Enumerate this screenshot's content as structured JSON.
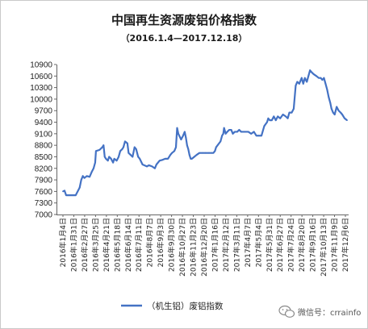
{
  "chart_data": {
    "type": "line",
    "title": "中国再生资源废铝价格指数",
    "subtitle": "（2016.1.4—2017.12.18）",
    "y_ticks": [
      7000,
      7300,
      7600,
      7900,
      8200,
      8500,
      8800,
      9100,
      9400,
      9700,
      10000,
      10300,
      10600,
      10900
    ],
    "ylim": [
      7000,
      10900
    ],
    "grid": false,
    "legend_position": "bottom",
    "color": "#4472c4",
    "x_ticks": [
      "2016年1月4日",
      "2016年1月31日",
      "2016年2月27日",
      "2016年3月25日",
      "2016年4月21日",
      "2016年5月18日",
      "2016年6月14日",
      "2016年7月11日",
      "2016年8月7日",
      "2016年9月3日",
      "2016年9月30日",
      "2016年10月27日",
      "2016年11月23日",
      "2016年12月20日",
      "2017年1月16日",
      "2017年2月12日",
      "2017年3月11日",
      "2017年4月7日",
      "2017年5月4日",
      "2017年5月31日",
      "2017年6月27日",
      "2017年7月24日",
      "2017年8月20日",
      "2017年9月16日",
      "2017年10月13日",
      "2017年11月9日",
      "2017年12月6日"
    ],
    "series": [
      {
        "name": "（机生铝）废铝指数",
        "points": [
          [
            "2016-01-04",
            7600
          ],
          [
            "2016-01-08",
            7620
          ],
          [
            "2016-01-12",
            7500
          ],
          [
            "2016-01-22",
            7500
          ],
          [
            "2016-02-05",
            7500
          ],
          [
            "2016-02-15",
            7700
          ],
          [
            "2016-02-19",
            7900
          ],
          [
            "2016-02-23",
            8000
          ],
          [
            "2016-02-27",
            7950
          ],
          [
            "2016-03-04",
            8000
          ],
          [
            "2016-03-11",
            7980
          ],
          [
            "2016-03-16",
            8100
          ],
          [
            "2016-03-21",
            8200
          ],
          [
            "2016-03-25",
            8350
          ],
          [
            "2016-03-27",
            8650
          ],
          [
            "2016-04-05",
            8680
          ],
          [
            "2016-04-12",
            8750
          ],
          [
            "2016-04-15",
            8800
          ],
          [
            "2016-04-18",
            8500
          ],
          [
            "2016-04-21",
            8450
          ],
          [
            "2016-04-26",
            8400
          ],
          [
            "2016-04-29",
            8500
          ],
          [
            "2016-05-04",
            8450
          ],
          [
            "2016-05-09",
            8350
          ],
          [
            "2016-05-12",
            8450
          ],
          [
            "2016-05-18",
            8400
          ],
          [
            "2016-05-23",
            8500
          ],
          [
            "2016-05-27",
            8650
          ],
          [
            "2016-06-01",
            8700
          ],
          [
            "2016-06-04",
            8750
          ],
          [
            "2016-06-08",
            8900
          ],
          [
            "2016-06-14",
            8850
          ],
          [
            "2016-06-17",
            8600
          ],
          [
            "2016-06-22",
            8550
          ],
          [
            "2016-06-27",
            8500
          ],
          [
            "2016-07-02",
            8750
          ],
          [
            "2016-07-06",
            8700
          ],
          [
            "2016-07-11",
            8500
          ],
          [
            "2016-07-15",
            8450
          ],
          [
            "2016-07-22",
            8300
          ],
          [
            "2016-08-02",
            8250
          ],
          [
            "2016-08-07",
            8280
          ],
          [
            "2016-08-15",
            8250
          ],
          [
            "2016-08-22",
            8200
          ],
          [
            "2016-08-26",
            8300
          ],
          [
            "2016-09-03",
            8400
          ],
          [
            "2016-09-10",
            8420
          ],
          [
            "2016-09-17",
            8450
          ],
          [
            "2016-09-24",
            8450
          ],
          [
            "2016-09-30",
            8550
          ],
          [
            "2016-10-04",
            8600
          ],
          [
            "2016-10-10",
            8650
          ],
          [
            "2016-10-14",
            8750
          ],
          [
            "2016-10-17",
            9250
          ],
          [
            "2016-10-20",
            9100
          ],
          [
            "2016-10-27",
            8950
          ],
          [
            "2016-11-01",
            9050
          ],
          [
            "2016-11-05",
            9150
          ],
          [
            "2016-11-08",
            9000
          ],
          [
            "2016-11-11",
            8800
          ],
          [
            "2016-11-14",
            8700
          ],
          [
            "2016-11-17",
            8550
          ],
          [
            "2016-11-20",
            8450
          ],
          [
            "2016-11-23",
            8450
          ],
          [
            "2016-11-29",
            8500
          ],
          [
            "2016-12-05",
            8550
          ],
          [
            "2016-12-12",
            8600
          ],
          [
            "2016-12-20",
            8600
          ],
          [
            "2016-12-27",
            8600
          ],
          [
            "2017-01-05",
            8600
          ],
          [
            "2017-01-12",
            8600
          ],
          [
            "2017-01-16",
            8600
          ],
          [
            "2017-01-20",
            8650
          ],
          [
            "2017-01-23",
            8750
          ],
          [
            "2017-02-03",
            8900
          ],
          [
            "2017-02-07",
            9050
          ],
          [
            "2017-02-10",
            9100
          ],
          [
            "2017-02-12",
            9250
          ],
          [
            "2017-02-16",
            9100
          ],
          [
            "2017-02-20",
            9150
          ],
          [
            "2017-02-25",
            9200
          ],
          [
            "2017-03-02",
            9200
          ],
          [
            "2017-03-06",
            9100
          ],
          [
            "2017-03-11",
            9150
          ],
          [
            "2017-03-17",
            9150
          ],
          [
            "2017-03-22",
            9200
          ],
          [
            "2017-03-27",
            9150
          ],
          [
            "2017-04-03",
            9150
          ],
          [
            "2017-04-07",
            9150
          ],
          [
            "2017-04-14",
            9150
          ],
          [
            "2017-04-21",
            9100
          ],
          [
            "2017-04-28",
            9150
          ],
          [
            "2017-05-04",
            9050
          ],
          [
            "2017-05-10",
            9050
          ],
          [
            "2017-05-17",
            9050
          ],
          [
            "2017-05-24",
            9300
          ],
          [
            "2017-05-31",
            9400
          ],
          [
            "2017-06-03",
            9500
          ],
          [
            "2017-06-07",
            9450
          ],
          [
            "2017-06-12",
            9450
          ],
          [
            "2017-06-17",
            9550
          ],
          [
            "2017-06-22",
            9450
          ],
          [
            "2017-06-27",
            9550
          ],
          [
            "2017-07-03",
            9500
          ],
          [
            "2017-07-10",
            9600
          ],
          [
            "2017-07-17",
            9550
          ],
          [
            "2017-07-22",
            9500
          ],
          [
            "2017-07-26",
            9650
          ],
          [
            "2017-08-01",
            9650
          ],
          [
            "2017-08-06",
            9750
          ],
          [
            "2017-08-11",
            10350
          ],
          [
            "2017-08-15",
            10450
          ],
          [
            "2017-08-20",
            10400
          ],
          [
            "2017-08-26",
            10550
          ],
          [
            "2017-08-30",
            10400
          ],
          [
            "2017-09-03",
            10550
          ],
          [
            "2017-09-08",
            10450
          ],
          [
            "2017-09-12",
            10600
          ],
          [
            "2017-09-16",
            10750
          ],
          [
            "2017-09-20",
            10700
          ],
          [
            "2017-09-25",
            10650
          ],
          [
            "2017-10-02",
            10600
          ],
          [
            "2017-10-08",
            10550
          ],
          [
            "2017-10-13",
            10550
          ],
          [
            "2017-10-17",
            10500
          ],
          [
            "2017-10-21",
            10550
          ],
          [
            "2017-10-25",
            10400
          ],
          [
            "2017-10-29",
            10250
          ],
          [
            "2017-11-02",
            10050
          ],
          [
            "2017-11-06",
            9900
          ],
          [
            "2017-11-09",
            9750
          ],
          [
            "2017-11-13",
            9650
          ],
          [
            "2017-11-17",
            9600
          ],
          [
            "2017-11-22",
            9800
          ],
          [
            "2017-11-27",
            9700
          ],
          [
            "2017-12-02",
            9650
          ],
          [
            "2017-12-06",
            9600
          ],
          [
            "2017-12-12",
            9500
          ],
          [
            "2017-12-18",
            9450
          ]
        ]
      }
    ]
  },
  "watermark": {
    "icon": "wechat-icon",
    "label": "微信号：crrainfo"
  }
}
